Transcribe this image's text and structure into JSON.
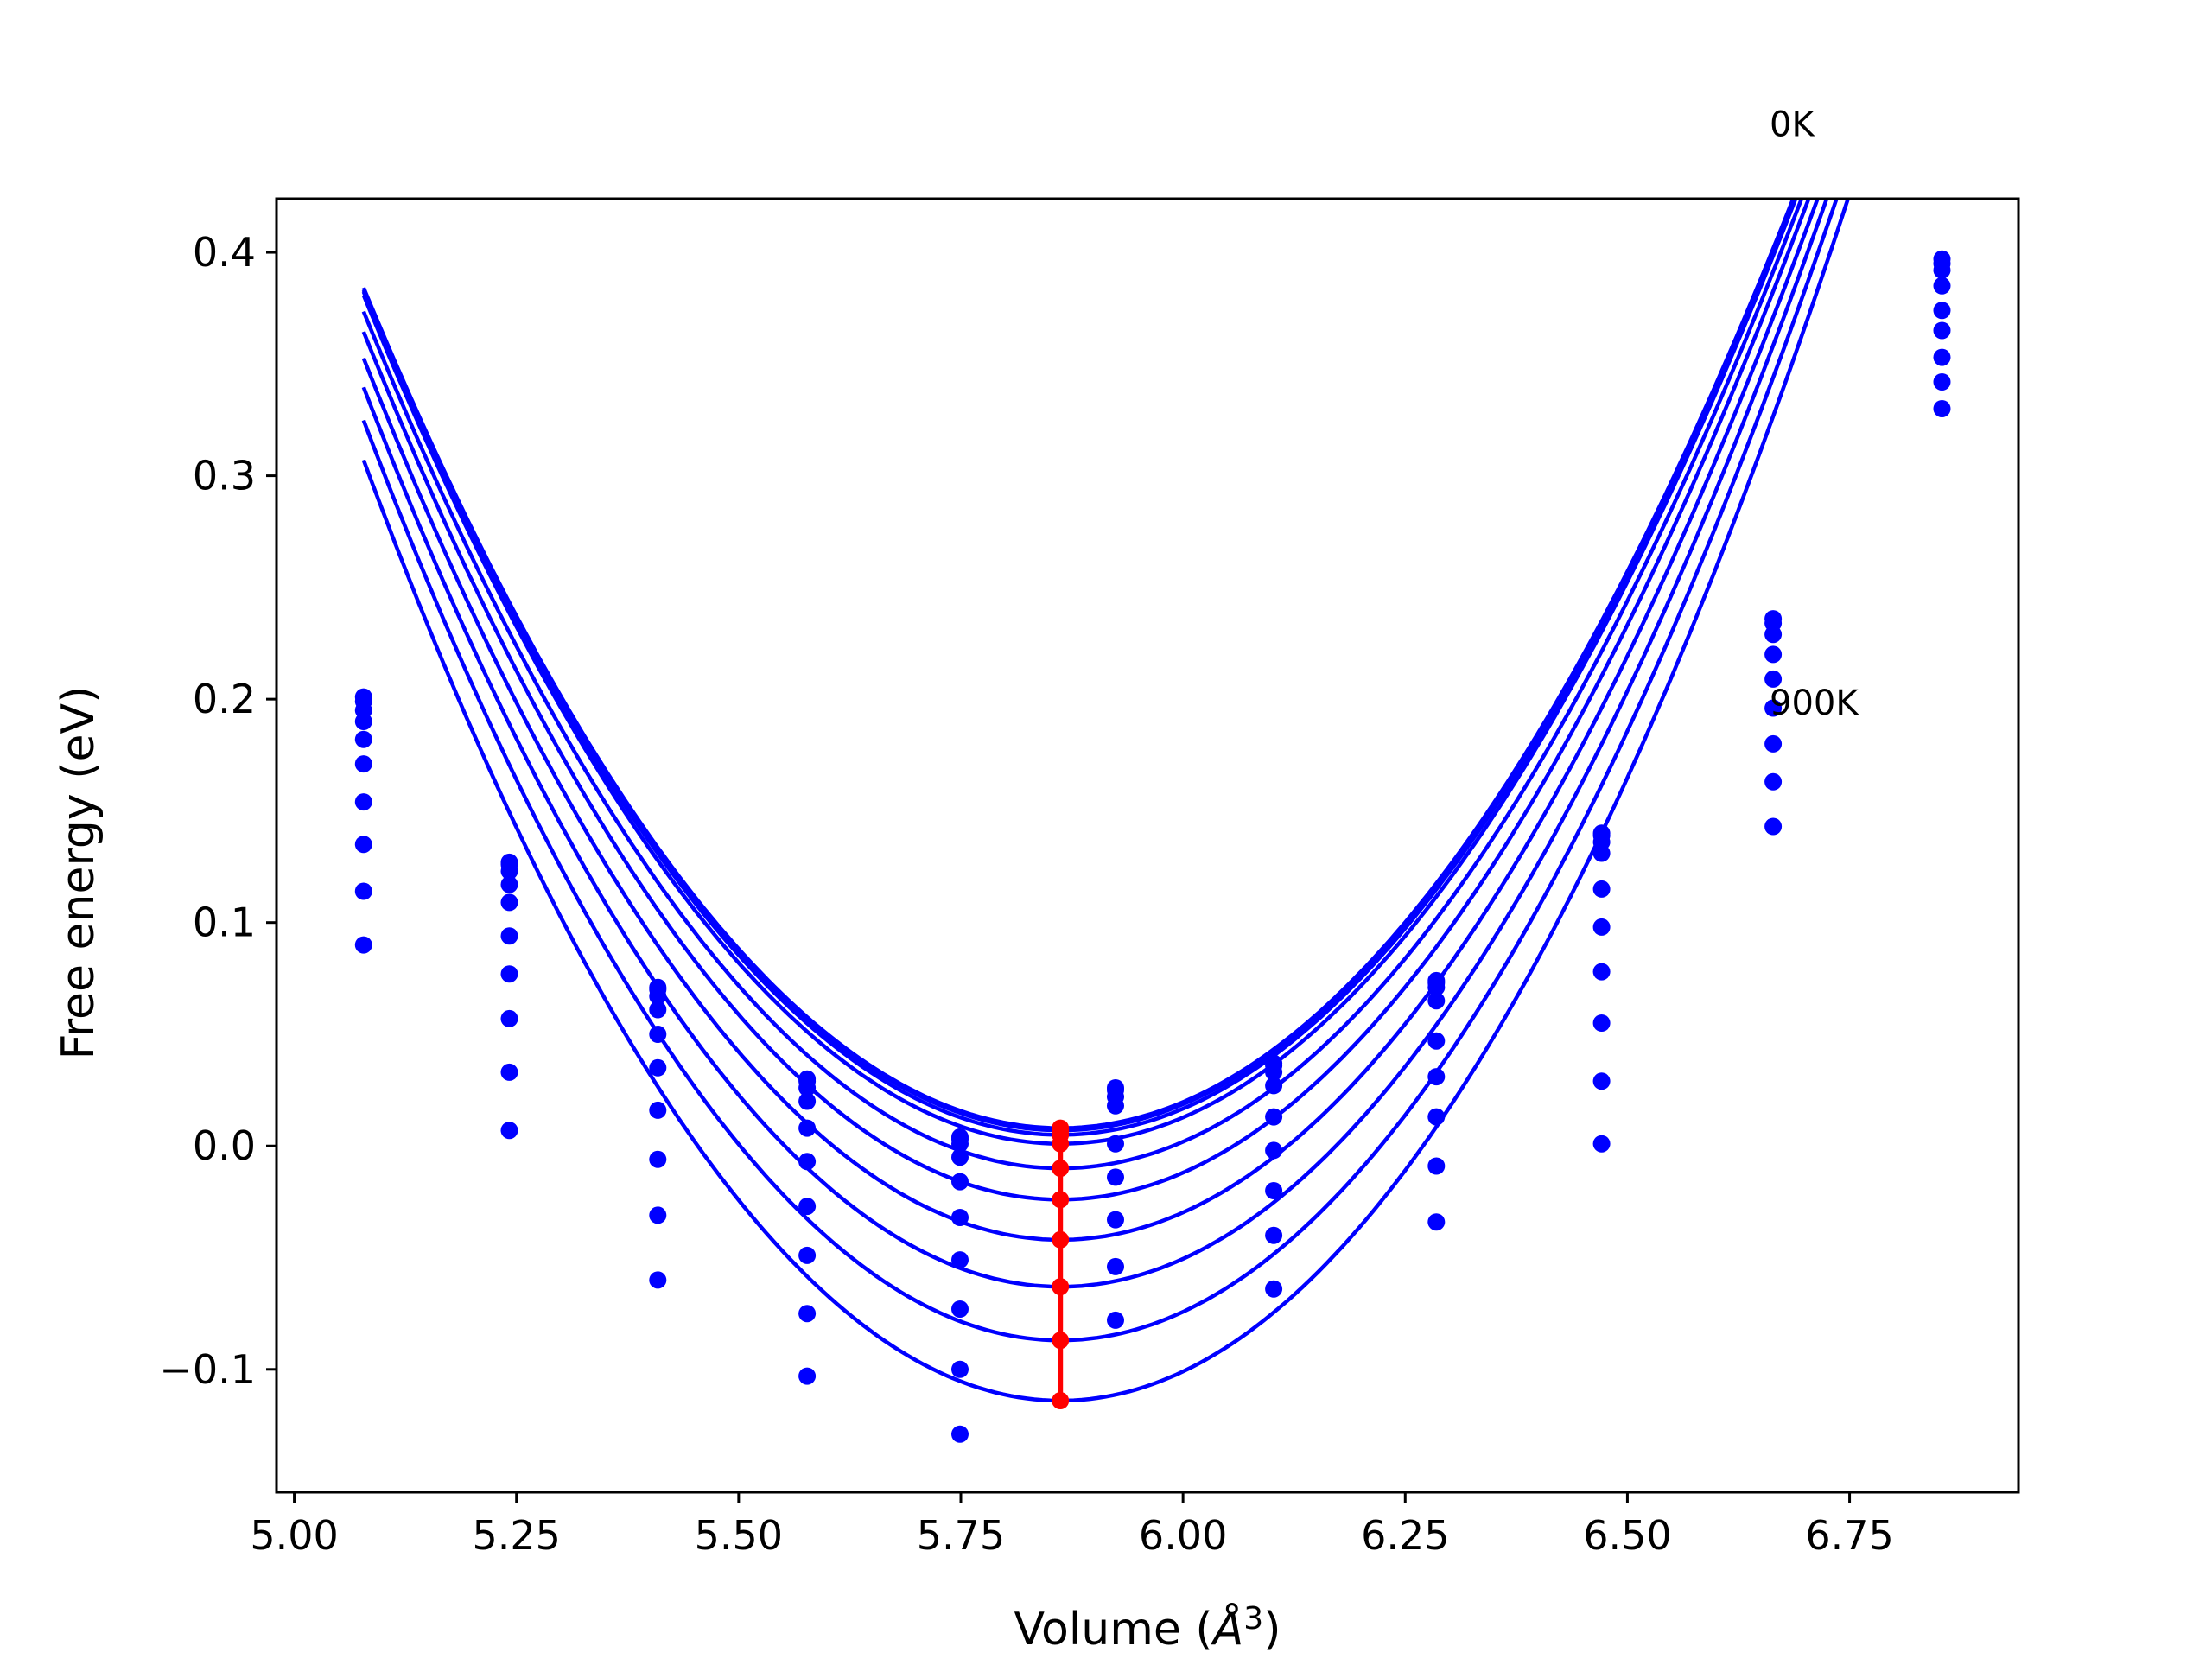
{
  "chart_data": {
    "type": "scatter",
    "title": "",
    "xlabel": "Volume (",
    "xlabel_italic": "Å",
    "xlabel_sup": "3",
    "xlabel_close": ")",
    "ylabel": "Free energy (eV)",
    "xlim": [
      4.98,
      6.94
    ],
    "ylim": [
      -0.155,
      0.424
    ],
    "xticks": [
      5.0,
      5.25,
      5.5,
      5.75,
      6.0,
      6.25,
      6.5,
      6.75
    ],
    "xtick_labels": [
      "5.00",
      "5.25",
      "5.50",
      "5.75",
      "6.00",
      "6.25",
      "6.50",
      "6.75"
    ],
    "yticks": [
      -0.1,
      0.0,
      0.1,
      0.2,
      0.3,
      0.4
    ],
    "ytick_labels": [
      "−0.1",
      "0.0",
      "0.1",
      "0.2",
      "0.3",
      "0.4"
    ],
    "grid": false,
    "colors": {
      "points": "#0000ff",
      "fits": "#0000ff",
      "minima": "#ff0000"
    },
    "annotations": [
      {
        "text": "0K",
        "x": 6.66,
        "y": 0.452
      },
      {
        "text": "900K",
        "x": 6.66,
        "y": 0.193
      }
    ],
    "volumes": [
      5.078,
      5.242,
      5.409,
      5.577,
      5.749,
      5.924,
      6.102,
      6.285,
      6.471,
      6.664,
      6.854
    ],
    "fit_range": [
      5.078,
      6.854
    ],
    "minimum_volume": 5.862,
    "series": [
      {
        "values": [
          0.201,
          0.127,
          0.071,
          0.03,
          0.004,
          0.026,
          0.037,
          0.074,
          0.14,
          0.236,
          0.397
        ],
        "fit": {
          "a": 0.612,
          "b": 0.008,
          "c": 5.862
        }
      },
      {
        "values": [
          0.199,
          0.126,
          0.07,
          0.029,
          0.003,
          0.025,
          0.036,
          0.073,
          0.139,
          0.234,
          0.395
        ],
        "fit": {
          "a": 0.612,
          "b": 0.007,
          "c": 5.862
        }
      },
      {
        "values": [
          0.195,
          0.123,
          0.067,
          0.026,
          0.001,
          0.022,
          0.033,
          0.071,
          0.136,
          0.229,
          0.392
        ],
        "fit": {
          "a": 0.614,
          "b": 0.005,
          "c": 5.862
        }
      },
      {
        "values": [
          0.19,
          0.117,
          0.061,
          0.02,
          -0.005,
          0.018,
          0.027,
          0.065,
          0.131,
          0.22,
          0.385
        ],
        "fit": {
          "a": 0.618,
          "b": 0.001,
          "c": 5.862
        }
      },
      {
        "values": [
          0.182,
          0.109,
          0.05,
          0.008,
          -0.016,
          0.001,
          0.013,
          0.047,
          0.115,
          0.209,
          0.374
        ],
        "fit": {
          "a": 0.624,
          "b": -0.01,
          "c": 5.862
        }
      },
      {
        "values": [
          0.171,
          0.094,
          0.035,
          -0.007,
          -0.032,
          -0.014,
          -0.002,
          0.031,
          0.098,
          0.196,
          0.365
        ],
        "fit": {
          "a": 0.632,
          "b": -0.024,
          "c": 5.862
        }
      },
      {
        "values": [
          0.154,
          0.077,
          0.016,
          -0.027,
          -0.051,
          -0.033,
          -0.02,
          0.013,
          0.078,
          0.18,
          0.353
        ],
        "fit": {
          "a": 0.642,
          "b": -0.042,
          "c": 5.862
        }
      },
      {
        "values": [
          0.135,
          0.057,
          -0.006,
          -0.049,
          -0.073,
          -0.054,
          -0.04,
          -0.009,
          0.055,
          0.163,
          0.342
        ],
        "fit": {
          "a": 0.655,
          "b": -0.063,
          "c": 5.862
        }
      },
      {
        "values": [
          0.114,
          0.033,
          -0.031,
          -0.075,
          -0.1,
          -0.078,
          -0.064,
          -0.034,
          0.029,
          0.143,
          0.33
        ],
        "fit": {
          "a": 0.67,
          "b": -0.087,
          "c": 5.862
        }
      },
      {
        "values": [
          0.09,
          0.007,
          -0.06,
          -0.103,
          -0.129,
          null,
          null,
          null,
          0.001,
          null,
          null
        ],
        "fit": {
          "a": 0.685,
          "b": -0.114,
          "c": 5.862
        }
      }
    ]
  }
}
